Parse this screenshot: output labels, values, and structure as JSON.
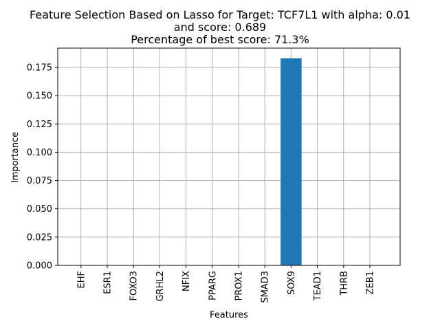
{
  "chart_data": {
    "type": "bar",
    "title_lines": [
      "Feature Selection Based on Lasso for Target: TCF7L1 with alpha: 0.01",
      "and score: 0.689",
      "Percentage of best score: 71.3%"
    ],
    "xlabel": "Features",
    "ylabel": "Importance",
    "categories": [
      "EHF",
      "ESR1",
      "FOXO3",
      "GRHL2",
      "NFIX",
      "PPARG",
      "PROX1",
      "SMAD3",
      "SOX9",
      "TEAD1",
      "THRB",
      "ZEB1"
    ],
    "values": [
      0,
      0,
      0,
      0,
      0,
      0,
      0,
      0,
      0.183,
      0,
      0,
      0
    ],
    "ylim": [
      0,
      0.192
    ],
    "yticks": [
      "0.000",
      "0.025",
      "0.050",
      "0.075",
      "0.100",
      "0.125",
      "0.150",
      "0.175"
    ],
    "ytick_values": [
      0,
      0.025,
      0.05,
      0.075,
      0.1,
      0.125,
      0.15,
      0.175
    ],
    "grid": true,
    "bar_color": "#1f77b4",
    "grid_color": "#b0b0b0"
  }
}
